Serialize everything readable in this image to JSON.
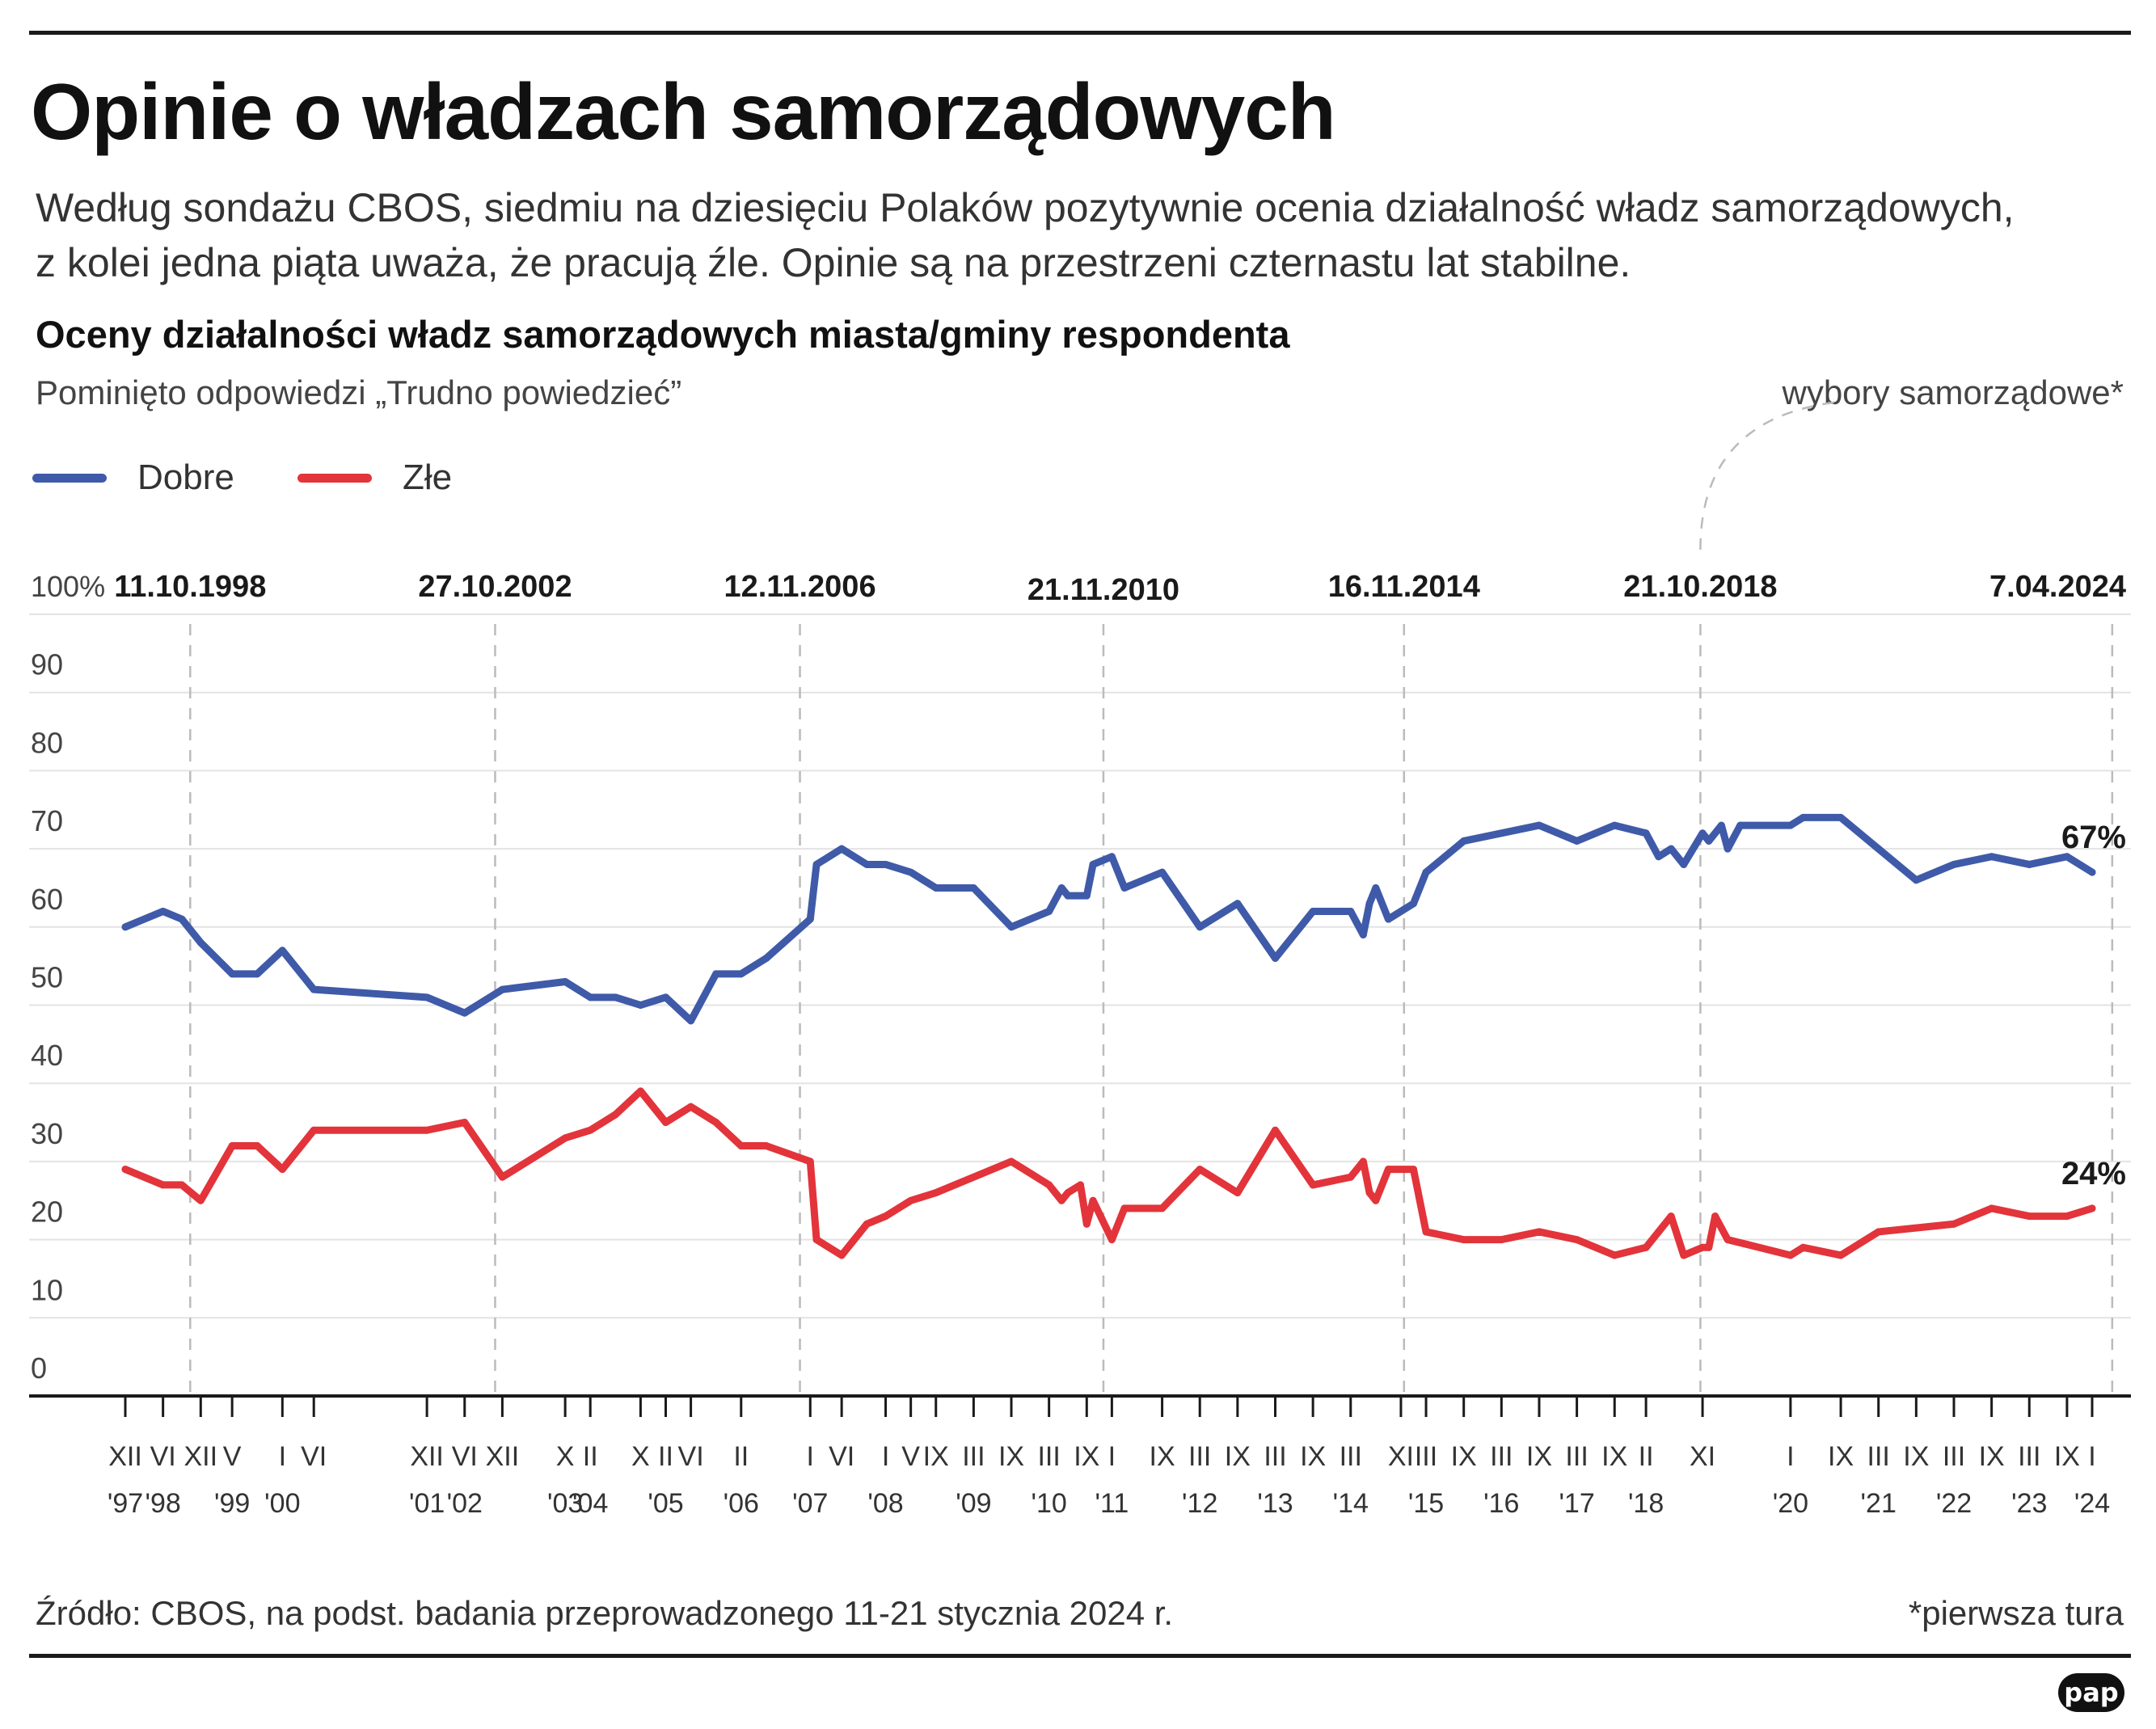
{
  "header": {
    "title": "Opinie o władzach samorządowych",
    "lead": [
      "Według sondażu CBOS, siedmiu na dziesięciu Polaków pozytywnie ocenia działalność władz samorządowych,",
      "z kolei jedna piąta uważa, że pracują źle. Opinie są na przestrzeni czternastu lat stabilne."
    ]
  },
  "chart_header": {
    "title": "Oceny działalności władz samorządowych miasta/gminy respondenta",
    "subtitle": "Pominięto odpowiedzi „Trudno powiedzieć”",
    "annotation": "wybory samorządowe*"
  },
  "footer": {
    "source": "Źródło: CBOS, na podst. badania przeprowadzonego 11-21 stycznia 2024 r.",
    "footnote": "*pierwsza tura",
    "logo": "pap"
  },
  "colors": {
    "dobre": "#3f5aa8",
    "zle": "#e2343a",
    "axis": "#1a1a1a",
    "grid": "#e3e3e3",
    "election": "#bbbbbb"
  },
  "chart_data": {
    "type": "line",
    "title": "Oceny działalności władz samorządowych miasta/gminy respondenta",
    "y_tick_labels": [
      "100%",
      "90",
      "80",
      "70",
      "60",
      "50",
      "40",
      "30",
      "20",
      "10",
      "0"
    ],
    "ylim": [
      0,
      100
    ],
    "xlim": [
      "1997-11",
      "2024-06"
    ],
    "grid": true,
    "legend": "top-left",
    "x_ticks": [
      {
        "month": "XII",
        "year": "'97",
        "date": "1997-12"
      },
      {
        "month": "VI",
        "year": "'98",
        "date": "1998-06"
      },
      {
        "month": "XII",
        "year": "",
        "date": "1998-12"
      },
      {
        "month": "V",
        "year": "'99",
        "date": "1999-05"
      },
      {
        "month": "I",
        "year": "'00",
        "date": "2000-01"
      },
      {
        "month": "VI",
        "year": "",
        "date": "2000-06"
      },
      {
        "month": "XII",
        "year": "'01",
        "date": "2001-12"
      },
      {
        "month": "VI",
        "year": "'02",
        "date": "2002-06"
      },
      {
        "month": "XII",
        "year": "",
        "date": "2002-12"
      },
      {
        "month": "X",
        "year": "'03",
        "date": "2003-10"
      },
      {
        "month": "II",
        "year": "'04",
        "date": "2004-02"
      },
      {
        "month": "X",
        "year": "",
        "date": "2004-10"
      },
      {
        "month": "II",
        "year": "'05",
        "date": "2005-02"
      },
      {
        "month": "VI",
        "year": "",
        "date": "2005-06"
      },
      {
        "month": "II",
        "year": "'06",
        "date": "2006-02"
      },
      {
        "month": "I",
        "year": "'07",
        "date": "2007-01"
      },
      {
        "month": "VI",
        "year": "",
        "date": "2007-06"
      },
      {
        "month": "I",
        "year": "'08",
        "date": "2008-01"
      },
      {
        "month": "V",
        "year": "",
        "date": "2008-05"
      },
      {
        "month": "IX",
        "year": "",
        "date": "2008-09"
      },
      {
        "month": "III",
        "year": "'09",
        "date": "2009-03"
      },
      {
        "month": "IX",
        "year": "",
        "date": "2009-09"
      },
      {
        "month": "III",
        "year": "'10",
        "date": "2010-03"
      },
      {
        "month": "IX",
        "year": "",
        "date": "2010-09"
      },
      {
        "month": "I",
        "year": "'11",
        "date": "2011-01"
      },
      {
        "month": "IX",
        "year": "",
        "date": "2011-09"
      },
      {
        "month": "III",
        "year": "'12",
        "date": "2012-03"
      },
      {
        "month": "IX",
        "year": "",
        "date": "2012-09"
      },
      {
        "month": "III",
        "year": "'13",
        "date": "2013-03"
      },
      {
        "month": "IX",
        "year": "",
        "date": "2013-09"
      },
      {
        "month": "III",
        "year": "'14",
        "date": "2014-03"
      },
      {
        "month": "XI",
        "year": "",
        "date": "2014-11"
      },
      {
        "month": "III",
        "year": "'15",
        "date": "2015-03"
      },
      {
        "month": "IX",
        "year": "",
        "date": "2015-09"
      },
      {
        "month": "III",
        "year": "'16",
        "date": "2016-03"
      },
      {
        "month": "IX",
        "year": "",
        "date": "2016-09"
      },
      {
        "month": "III",
        "year": "'17",
        "date": "2017-03"
      },
      {
        "month": "IX",
        "year": "",
        "date": "2017-09"
      },
      {
        "month": "II",
        "year": "'18",
        "date": "2018-02"
      },
      {
        "month": "XI",
        "year": "",
        "date": "2018-11"
      },
      {
        "month": "I",
        "year": "'20",
        "date": "2020-01"
      },
      {
        "month": "IX",
        "year": "",
        "date": "2020-09"
      },
      {
        "month": "III",
        "year": "'21",
        "date": "2021-03"
      },
      {
        "month": "IX",
        "year": "",
        "date": "2021-09"
      },
      {
        "month": "III",
        "year": "'22",
        "date": "2022-03"
      },
      {
        "month": "IX",
        "year": "",
        "date": "2022-09"
      },
      {
        "month": "III",
        "year": "'23",
        "date": "2023-03"
      },
      {
        "month": "IX",
        "year": "",
        "date": "2023-09"
      },
      {
        "month": "I",
        "year": "'24",
        "date": "2024-01"
      }
    ],
    "election_markers": [
      {
        "label": "11.10.1998",
        "date": "1998-10-11"
      },
      {
        "label": "27.10.2002",
        "date": "2002-10-27"
      },
      {
        "label": "12.11.2006",
        "date": "2006-11-12"
      },
      {
        "label": "21.11.2010",
        "date": "2010-11-21"
      },
      {
        "label": "16.11.2014",
        "date": "2014-11-16"
      },
      {
        "label": "21.10.2018",
        "date": "2018-10-21"
      },
      {
        "label": "7.04.2024",
        "date": "2024-04-07"
      }
    ],
    "series": [
      {
        "name": "Dobre",
        "end_label": "67%",
        "points": [
          [
            "1997-12",
            60
          ],
          [
            "1998-06",
            62
          ],
          [
            "1998-09",
            61
          ],
          [
            "1998-12",
            58
          ],
          [
            "1999-05",
            54
          ],
          [
            "1999-09",
            54
          ],
          [
            "2000-01",
            57
          ],
          [
            "2000-06",
            52
          ],
          [
            "2001-12",
            51
          ],
          [
            "2002-06",
            49
          ],
          [
            "2002-12",
            52
          ],
          [
            "2003-10",
            53
          ],
          [
            "2004-02",
            51
          ],
          [
            "2004-06",
            51
          ],
          [
            "2004-10",
            50
          ],
          [
            "2005-02",
            51
          ],
          [
            "2005-06",
            48
          ],
          [
            "2005-10",
            54
          ],
          [
            "2006-02",
            54
          ],
          [
            "2006-06",
            56
          ],
          [
            "2007-01",
            61
          ],
          [
            "2007-02",
            68
          ],
          [
            "2007-06",
            70
          ],
          [
            "2007-10",
            68
          ],
          [
            "2008-01",
            68
          ],
          [
            "2008-05",
            67
          ],
          [
            "2008-09",
            65
          ],
          [
            "2009-03",
            65
          ],
          [
            "2009-09",
            60
          ],
          [
            "2010-03",
            62
          ],
          [
            "2010-05",
            65
          ],
          [
            "2010-06",
            64
          ],
          [
            "2010-09",
            64
          ],
          [
            "2010-10",
            68
          ],
          [
            "2011-01",
            69
          ],
          [
            "2011-03",
            65
          ],
          [
            "2011-09",
            67
          ],
          [
            "2012-03",
            60
          ],
          [
            "2012-09",
            63
          ],
          [
            "2013-03",
            56
          ],
          [
            "2013-09",
            62
          ],
          [
            "2014-03",
            62
          ],
          [
            "2014-05",
            59
          ],
          [
            "2014-06",
            63
          ],
          [
            "2014-07",
            65
          ],
          [
            "2014-09",
            61
          ],
          [
            "2015-01",
            63
          ],
          [
            "2015-03",
            67
          ],
          [
            "2015-09",
            71
          ],
          [
            "2016-09",
            73
          ],
          [
            "2017-03",
            71
          ],
          [
            "2017-09",
            73
          ],
          [
            "2018-02",
            72
          ],
          [
            "2018-04",
            69
          ],
          [
            "2018-06",
            70
          ],
          [
            "2018-08",
            68
          ],
          [
            "2018-11",
            72
          ],
          [
            "2018-12",
            71
          ],
          [
            "2019-02",
            73
          ],
          [
            "2019-03",
            70
          ],
          [
            "2019-05",
            73
          ],
          [
            "2020-01",
            73
          ],
          [
            "2020-03",
            74
          ],
          [
            "2020-09",
            74
          ],
          [
            "2021-03",
            70
          ],
          [
            "2021-09",
            66
          ],
          [
            "2022-03",
            68
          ],
          [
            "2022-09",
            69
          ],
          [
            "2023-03",
            68
          ],
          [
            "2023-09",
            69
          ],
          [
            "2024-01",
            67
          ]
        ]
      },
      {
        "name": "Złe",
        "end_label": "24%",
        "points": [
          [
            "1997-12",
            29
          ],
          [
            "1998-06",
            27
          ],
          [
            "1998-09",
            27
          ],
          [
            "1998-12",
            25
          ],
          [
            "1999-05",
            32
          ],
          [
            "1999-09",
            32
          ],
          [
            "2000-01",
            29
          ],
          [
            "2000-06",
            34
          ],
          [
            "2001-12",
            34
          ],
          [
            "2002-06",
            35
          ],
          [
            "2002-12",
            28
          ],
          [
            "2003-10",
            33
          ],
          [
            "2004-02",
            34
          ],
          [
            "2004-06",
            36
          ],
          [
            "2004-10",
            39
          ],
          [
            "2005-02",
            35
          ],
          [
            "2005-06",
            37
          ],
          [
            "2005-10",
            35
          ],
          [
            "2006-02",
            32
          ],
          [
            "2006-06",
            32
          ],
          [
            "2007-01",
            30
          ],
          [
            "2007-02",
            20
          ],
          [
            "2007-06",
            18
          ],
          [
            "2007-10",
            22
          ],
          [
            "2008-01",
            23
          ],
          [
            "2008-05",
            25
          ],
          [
            "2008-09",
            26
          ],
          [
            "2009-09",
            30
          ],
          [
            "2010-03",
            27
          ],
          [
            "2010-05",
            25
          ],
          [
            "2010-06",
            26
          ],
          [
            "2010-08",
            27
          ],
          [
            "2010-09",
            22
          ],
          [
            "2010-10",
            25
          ],
          [
            "2011-01",
            20
          ],
          [
            "2011-03",
            24
          ],
          [
            "2011-09",
            24
          ],
          [
            "2012-03",
            29
          ],
          [
            "2012-09",
            26
          ],
          [
            "2013-03",
            34
          ],
          [
            "2013-09",
            27
          ],
          [
            "2014-03",
            28
          ],
          [
            "2014-05",
            30
          ],
          [
            "2014-06",
            26
          ],
          [
            "2014-07",
            25
          ],
          [
            "2014-09",
            29
          ],
          [
            "2015-01",
            29
          ],
          [
            "2015-03",
            21
          ],
          [
            "2015-09",
            20
          ],
          [
            "2016-03",
            20
          ],
          [
            "2016-09",
            21
          ],
          [
            "2017-03",
            20
          ],
          [
            "2017-09",
            18
          ],
          [
            "2018-02",
            19
          ],
          [
            "2018-04",
            21
          ],
          [
            "2018-06",
            23
          ],
          [
            "2018-08",
            18
          ],
          [
            "2018-11",
            19
          ],
          [
            "2018-12",
            19
          ],
          [
            "2019-01",
            23
          ],
          [
            "2019-03",
            20
          ],
          [
            "2020-01",
            18
          ],
          [
            "2020-03",
            19
          ],
          [
            "2020-09",
            18
          ],
          [
            "2021-03",
            21
          ],
          [
            "2022-03",
            22
          ],
          [
            "2022-09",
            24
          ],
          [
            "2023-03",
            23
          ],
          [
            "2023-09",
            23
          ],
          [
            "2024-01",
            24
          ]
        ]
      }
    ]
  }
}
